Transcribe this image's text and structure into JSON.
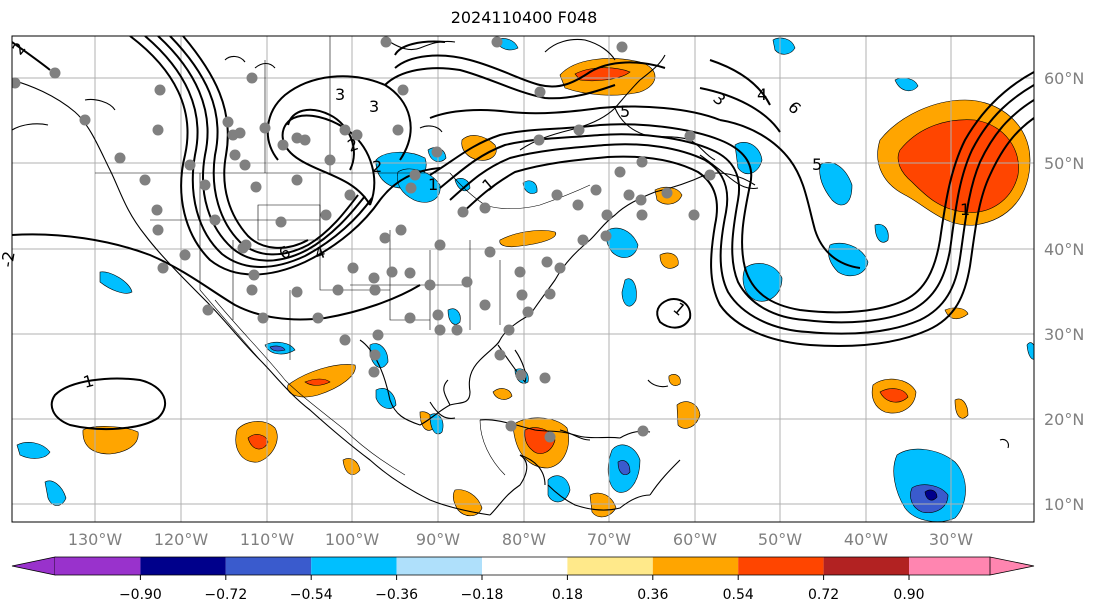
{
  "title": "2024110400 F048",
  "map": {
    "lon_labels": [
      "130°W",
      "120°W",
      "110°W",
      "100°W",
      "90°W",
      "80°W",
      "70°W",
      "60°W",
      "50°W",
      "40°W",
      "30°W"
    ],
    "lat_labels": [
      "60°N",
      "50°N",
      "40°N",
      "30°N",
      "20°N",
      "10°N"
    ],
    "contour_labels": [
      "2",
      "3",
      "5",
      "3",
      "4",
      "6",
      "5",
      "3",
      "1",
      "2",
      "6",
      "4",
      "1",
      "1",
      "1",
      "1",
      "2",
      "-2"
    ],
    "station_color": "#808080",
    "contour_color": "#000000"
  },
  "colorbar": {
    "ticks": [
      "−0.90",
      "−0.72",
      "−0.54",
      "−0.36",
      "−0.18",
      "0.18",
      "0.36",
      "0.54",
      "0.72",
      "0.90"
    ],
    "colors": [
      "#9932cc",
      "#00008b",
      "#3a5bcd",
      "#00bfff",
      "#afe0fb",
      "#ffffff",
      "#ffe98a",
      "#ffa500",
      "#ff4500",
      "#b22222",
      "#ff85b0"
    ]
  }
}
